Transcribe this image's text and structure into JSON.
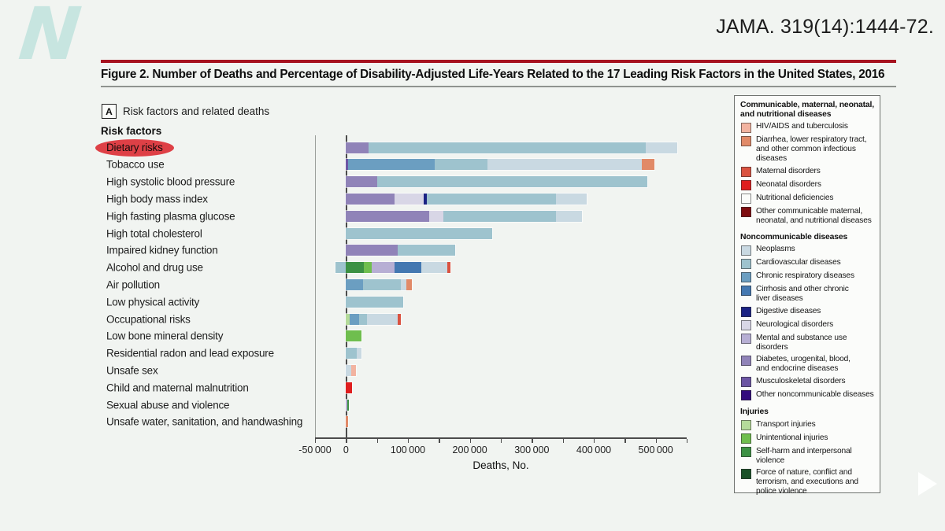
{
  "header": {
    "citation": "JAMA. 319(14):1444-72.",
    "logo_glyph": "N"
  },
  "title": "Figure 2. Number of Deaths and Percentage of Disability-Adjusted Life-Years Related to the 17 Leading Risk Factors in the United States, 2016",
  "panel": {
    "marker": "A",
    "label": "Risk factors and related deaths"
  },
  "row_header": "Risk factors",
  "annotation": {
    "highlighted_risk": "Dietary risks",
    "highlight_color": "#de4046"
  },
  "chart_data": {
    "type": "bar",
    "orientation": "horizontal",
    "title": "Risk factors and related deaths",
    "xlabel": "Deaths, No.",
    "ylabel": "Risk factors",
    "x_min": -50000,
    "x_max": 550000,
    "tick_step": 50000,
    "grid": false,
    "legend_position": "right",
    "x_ticks": [
      {
        "value": -50000,
        "label": "-50 000"
      },
      {
        "value": 0,
        "label": "0"
      },
      {
        "value": 100000,
        "label": "100 000"
      },
      {
        "value": 200000,
        "label": "200 000"
      },
      {
        "value": 300000,
        "label": "300 000"
      },
      {
        "value": 400000,
        "label": "400 000"
      },
      {
        "value": 500000,
        "label": "500 000"
      }
    ],
    "colors": {
      "hiv": "#f2b3a0",
      "diarrhea": "#e18a68",
      "maternal": "#da5240",
      "neonatal": "#df1e1f",
      "nutritional": "#bе1019",
      "other_cmnn": "#7e0d10",
      "neoplasms": "#c9d9e2",
      "cardiovascular": "#9ec3ce",
      "chronic_respiratory": "#6b9ec1",
      "cirrhosis": "#4478b1",
      "digestive": "#1b2384",
      "neurological": "#d8d6e6",
      "mental": "#b7afd4",
      "diabetes": "#9083b8",
      "musculoskeletal": "#6c55a4",
      "other_ncd": "#320b7d",
      "transport": "#b5db9a",
      "unintentional": "#6fbe4e",
      "selfharm": "#3c9144",
      "force_nature": "#1b5229"
    },
    "bars": [
      {
        "risk": "Dietary risks",
        "segments": [
          {
            "cause": "diabetes",
            "deaths": 36000
          },
          {
            "cause": "cardiovascular",
            "deaths": 448000
          },
          {
            "cause": "neoplasms",
            "deaths": 51000
          }
        ]
      },
      {
        "risk": "Tobacco use",
        "segments": [
          {
            "cause": "musculoskeletal",
            "deaths": 4000
          },
          {
            "cause": "chronic_respiratory",
            "deaths": 139000
          },
          {
            "cause": "cardiovascular",
            "deaths": 85000
          },
          {
            "cause": "neoplasms",
            "deaths": 250000
          },
          {
            "cause": "diarrhea",
            "deaths": 20000
          }
        ]
      },
      {
        "risk": "High systolic blood pressure",
        "segments": [
          {
            "cause": "diabetes",
            "deaths": 50000
          },
          {
            "cause": "cardiovascular",
            "deaths": 437000
          }
        ]
      },
      {
        "risk": "High body mass index",
        "segments": [
          {
            "cause": "diabetes",
            "deaths": 78000
          },
          {
            "cause": "neurological",
            "deaths": 47000
          },
          {
            "cause": "digestive",
            "deaths": 5000
          },
          {
            "cause": "cardiovascular",
            "deaths": 209000
          },
          {
            "cause": "neoplasms",
            "deaths": 50000
          }
        ]
      },
      {
        "risk": "High fasting plasma glucose",
        "segments": [
          {
            "cause": "diabetes",
            "deaths": 134000
          },
          {
            "cause": "neurological",
            "deaths": 23000
          },
          {
            "cause": "cardiovascular",
            "deaths": 182000
          },
          {
            "cause": "neoplasms",
            "deaths": 42000
          }
        ]
      },
      {
        "risk": "High total cholesterol",
        "segments": [
          {
            "cause": "cardiovascular",
            "deaths": 236000
          }
        ]
      },
      {
        "risk": "Impaired kidney function",
        "segments": [
          {
            "cause": "diabetes",
            "deaths": 83000
          },
          {
            "cause": "cardiovascular",
            "deaths": 93000
          }
        ]
      },
      {
        "risk": "Alcohol and drug use",
        "segments": [
          {
            "cause": "cardiovascular",
            "deaths": -17000
          },
          {
            "cause": "selfharm",
            "deaths": 29000
          },
          {
            "cause": "unintentional",
            "deaths": 13000
          },
          {
            "cause": "mental",
            "deaths": 37000
          },
          {
            "cause": "cirrhosis",
            "deaths": 43000
          },
          {
            "cause": "neoplasms",
            "deaths": 42000
          },
          {
            "cause": "maternal",
            "deaths": 5000
          }
        ]
      },
      {
        "risk": "Air pollution",
        "segments": [
          {
            "cause": "chronic_respiratory",
            "deaths": 27000
          },
          {
            "cause": "cardiovascular",
            "deaths": 61000
          },
          {
            "cause": "neoplasms",
            "deaths": 9000
          },
          {
            "cause": "diarrhea",
            "deaths": 10000
          }
        ]
      },
      {
        "risk": "Low physical activity",
        "segments": [
          {
            "cause": "cardiovascular",
            "deaths": 92000
          }
        ]
      },
      {
        "risk": "Occupational risks",
        "segments": [
          {
            "cause": "transport",
            "deaths": 6000
          },
          {
            "cause": "chronic_respiratory",
            "deaths": 15000
          },
          {
            "cause": "cardiovascular",
            "deaths": 13000
          },
          {
            "cause": "neoplasms",
            "deaths": 50000
          },
          {
            "cause": "maternal",
            "deaths": 4000
          }
        ]
      },
      {
        "risk": "Low bone mineral density",
        "segments": [
          {
            "cause": "unintentional",
            "deaths": 25000
          }
        ]
      },
      {
        "risk": "Residential radon and lead exposure",
        "segments": [
          {
            "cause": "cardiovascular",
            "deaths": 17000
          },
          {
            "cause": "neoplasms",
            "deaths": 8000
          }
        ]
      },
      {
        "risk": "Unsafe sex",
        "segments": [
          {
            "cause": "neoplasms",
            "deaths": 8000
          },
          {
            "cause": "hiv",
            "deaths": 8000
          }
        ]
      },
      {
        "risk": "Child and maternal malnutrition",
        "segments": [
          {
            "cause": "neonatal",
            "deaths": 10000
          }
        ]
      },
      {
        "risk": "Sexual abuse and violence",
        "segments": [
          {
            "cause": "mental",
            "deaths": 2500
          },
          {
            "cause": "selfharm",
            "deaths": 2500
          }
        ]
      },
      {
        "risk": "Unsafe water, sanitation, and handwashing",
        "segments": [
          {
            "cause": "diarrhea",
            "deaths": 3500
          }
        ]
      }
    ],
    "legend": [
      {
        "group": "Communicable, maternal, neonatal,\nand nutritional diseases",
        "items": [
          {
            "key": "hiv",
            "label": "HIV/AIDS and tuberculosis"
          },
          {
            "key": "diarrhea",
            "label": "Diarrhea, lower respiratory tract,\nand other common infectious\ndiseases"
          },
          {
            "key": "maternal",
            "label": "Maternal disorders"
          },
          {
            "key": "neonatal",
            "label": "Neonatal disorders"
          },
          {
            "key": "nutritional",
            "label": "Nutritional deficiencies"
          },
          {
            "key": "other_cmnn",
            "label": "Other communicable maternal,\nneonatal, and nutritional diseases"
          }
        ]
      },
      {
        "group": "Noncommunicable diseases",
        "items": [
          {
            "key": "neoplasms",
            "label": "Neoplasms"
          },
          {
            "key": "cardiovascular",
            "label": "Cardiovascular diseases"
          },
          {
            "key": "chronic_respiratory",
            "label": "Chronic respiratory diseases"
          },
          {
            "key": "cirrhosis",
            "label": "Cirrhosis and other chronic\nliver diseases"
          },
          {
            "key": "digestive",
            "label": "Digestive diseases"
          },
          {
            "key": "neurological",
            "label": "Neurological disorders"
          },
          {
            "key": "mental",
            "label": "Mental and substance use disorders"
          },
          {
            "key": "diabetes",
            "label": "Diabetes, urogenital, blood,\nand endocrine diseases"
          },
          {
            "key": "musculoskeletal",
            "label": "Musculoskeletal disorders"
          },
          {
            "key": "other_ncd",
            "label": "Other noncommunicable diseases"
          }
        ]
      },
      {
        "group": "Injuries",
        "items": [
          {
            "key": "transport",
            "label": "Transport injuries"
          },
          {
            "key": "unintentional",
            "label": "Unintentional injuries"
          },
          {
            "key": "selfharm",
            "label": "Self-harm and interpersonal\nviolence"
          },
          {
            "key": "force_nature",
            "label": "Force of nature, conflict and\nterrorism, and executions and\npolice violence"
          }
        ]
      }
    ]
  }
}
